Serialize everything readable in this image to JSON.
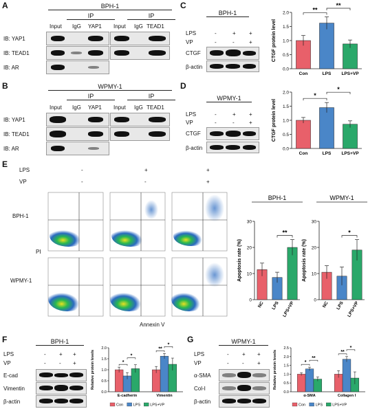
{
  "panels": {
    "A": {
      "label": "A",
      "title": "BPH-1",
      "ip_label": "IP",
      "lanes_left": [
        "Input",
        "IgG",
        "YAP1"
      ],
      "lanes_right": [
        "Input",
        "IgG",
        "TEAD1"
      ],
      "rows": [
        "IB: YAP1",
        "IB: TEAD1",
        "IB: AR"
      ]
    },
    "B": {
      "label": "B",
      "title": "WPMY-1",
      "ip_label": "IP",
      "lanes_left": [
        "Input",
        "IgG",
        "YAP1"
      ],
      "lanes_right": [
        "Input",
        "IgG",
        "TEAD1"
      ],
      "rows": [
        "IB: YAP1",
        "IB: TEAD1",
        "IB: AR"
      ]
    },
    "C": {
      "label": "C",
      "title": "BPH-1",
      "lps_label": "LPS",
      "vp_label": "VP",
      "lps_signs": [
        "-",
        "+",
        "+"
      ],
      "vp_signs": [
        "-",
        "-",
        "+"
      ],
      "rows": [
        "CTGF",
        "β-actin"
      ]
    },
    "D": {
      "label": "D",
      "title": "WPMY-1",
      "lps_label": "LPS",
      "vp_label": "VP",
      "lps_signs": [
        "-",
        "+",
        "+"
      ],
      "vp_signs": [
        "-",
        "-",
        "+"
      ],
      "rows": [
        "CTGF",
        "β-actin"
      ]
    },
    "E": {
      "label": "E",
      "lps_label": "LPS",
      "vp_label": "VP",
      "lps_signs": [
        "-",
        "+",
        "+"
      ],
      "vp_signs": [
        "-",
        "-",
        "+"
      ],
      "row_labels": [
        "BPH-1",
        "WPMY-1"
      ],
      "y_axis": "PI",
      "x_axis": "Annexin V"
    },
    "F": {
      "label": "F",
      "title": "BPH-1",
      "lps_label": "LPS",
      "vp_label": "VP",
      "lps_signs": [
        "-",
        "+",
        "+"
      ],
      "vp_signs": [
        "-",
        "-",
        "+"
      ],
      "rows": [
        "E-cad",
        "Vimentin",
        "β-actin"
      ]
    },
    "G": {
      "label": "G",
      "title": "WPMY-1",
      "lps_label": "LPS",
      "vp_label": "VP",
      "lps_signs": [
        "-",
        "+",
        "+"
      ],
      "vp_signs": [
        "-",
        "-",
        "+"
      ],
      "rows": [
        "α-SMA",
        "Col-I",
        "β-actin"
      ]
    }
  },
  "colors": {
    "con": "#e8606a",
    "lps": "#4a86c8",
    "vp": "#2aa86a"
  },
  "chart_data": [
    {
      "id": "C-bar",
      "type": "bar",
      "categories": [
        "Con",
        "LPS",
        "LPS+VP"
      ],
      "values": [
        1.0,
        1.62,
        0.88
      ],
      "errors": [
        0.18,
        0.22,
        0.14
      ],
      "ylabel": "CTGF protein level",
      "ylim": [
        0,
        2.0
      ],
      "yticks": [
        "0.0",
        "0.5",
        "1.0",
        "1.5",
        "2.0"
      ],
      "sig": [
        {
          "from": 0,
          "to": 1,
          "label": "**"
        },
        {
          "from": 1,
          "to": 2,
          "label": "**"
        }
      ]
    },
    {
      "id": "D-bar",
      "type": "bar",
      "categories": [
        "Con",
        "LPS",
        "LPS+VP"
      ],
      "values": [
        1.0,
        1.45,
        0.86
      ],
      "errors": [
        0.1,
        0.18,
        0.12
      ],
      "ylabel": "CTGF protein level",
      "ylim": [
        0,
        2.0
      ],
      "yticks": [
        "0.0",
        "0.5",
        "1.0",
        "1.5",
        "2.0"
      ],
      "sig": [
        {
          "from": 0,
          "to": 1,
          "label": "*"
        },
        {
          "from": 1,
          "to": 2,
          "label": "*"
        }
      ]
    },
    {
      "id": "E-bph",
      "type": "bar",
      "title": "BPH-1",
      "categories": [
        "NC",
        "LPS",
        "LPS+VP"
      ],
      "values": [
        11.5,
        8.5,
        20.0
      ],
      "errors": [
        2.5,
        2.0,
        3.0
      ],
      "ylabel": "Apoptosis rate (%)",
      "ylim": [
        0,
        30
      ],
      "yticks": [
        "0",
        "10",
        "20",
        "30"
      ],
      "sig": [
        {
          "from": 1,
          "to": 2,
          "label": "**"
        }
      ]
    },
    {
      "id": "E-wpmy",
      "type": "bar",
      "title": "WPMY-1",
      "categories": [
        "NC",
        "LPS",
        "LPS+VP"
      ],
      "values": [
        10.5,
        9.0,
        19.0
      ],
      "errors": [
        2.5,
        3.5,
        4.0
      ],
      "ylabel": "Apoptosis rate (%)",
      "ylim": [
        0,
        30
      ],
      "yticks": [
        "0",
        "10",
        "20",
        "30"
      ],
      "sig": [
        {
          "from": 1,
          "to": 2,
          "label": "*"
        }
      ]
    },
    {
      "id": "F-bar",
      "type": "bar",
      "categories": [
        "E-cadherin",
        "Vimentin"
      ],
      "series": [
        {
          "name": "Con",
          "values": [
            1.0,
            1.0
          ],
          "errors": [
            0.12,
            0.15
          ]
        },
        {
          "name": "LPS",
          "values": [
            0.72,
            1.62
          ],
          "errors": [
            0.15,
            0.12
          ]
        },
        {
          "name": "LPS+VP",
          "values": [
            1.05,
            1.25
          ],
          "errors": [
            0.18,
            0.28
          ]
        }
      ],
      "ylabel": "Relative protein levels",
      "ylim": [
        0,
        2.0
      ],
      "yticks": [
        "0.0",
        "0.5",
        "1.0",
        "1.5",
        "2.0"
      ],
      "sig": [
        {
          "group": 0,
          "from": 0,
          "to": 1,
          "label": "*"
        },
        {
          "group": 0,
          "from": 1,
          "to": 2,
          "label": "*"
        },
        {
          "group": 1,
          "from": 0,
          "to": 1,
          "label": "**"
        },
        {
          "group": 1,
          "from": 1,
          "to": 2,
          "label": "*"
        }
      ],
      "legend": "bottom"
    },
    {
      "id": "G-bar",
      "type": "bar",
      "categories": [
        "α-SMA",
        "Collagen I"
      ],
      "series": [
        {
          "name": "Con",
          "values": [
            1.0,
            1.0
          ],
          "errors": [
            0.08,
            0.2
          ]
        },
        {
          "name": "LPS",
          "values": [
            1.3,
            1.85
          ],
          "errors": [
            0.1,
            0.15
          ]
        },
        {
          "name": "LPS+VP",
          "values": [
            0.72,
            0.78
          ],
          "errors": [
            0.12,
            0.35
          ]
        }
      ],
      "ylabel": "Relative protein levels",
      "ylim": [
        0,
        2.5
      ],
      "yticks": [
        "0.0",
        "0.5",
        "1.0",
        "1.5",
        "2.0",
        "2.5"
      ],
      "sig": [
        {
          "group": 0,
          "from": 0,
          "to": 1,
          "label": "*"
        },
        {
          "group": 0,
          "from": 1,
          "to": 2,
          "label": "**"
        },
        {
          "group": 1,
          "from": 0,
          "to": 1,
          "label": "**"
        },
        {
          "group": 1,
          "from": 1,
          "to": 2,
          "label": "*"
        }
      ],
      "legend": "bottom"
    }
  ]
}
